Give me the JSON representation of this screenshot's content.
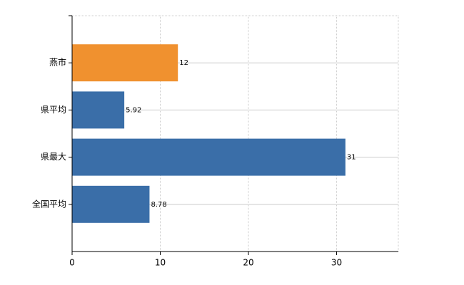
{
  "chart_data": {
    "type": "hbar",
    "categories": [
      "燕市",
      "県平均",
      "県最大",
      "全国平均"
    ],
    "values": [
      12,
      5.92,
      31,
      8.78
    ],
    "colors": [
      "#f0912f",
      "#3a6ea8",
      "#3a6ea8",
      "#3a6ea8"
    ],
    "xlim": [
      0,
      37
    ],
    "xticks": [
      0,
      10,
      20,
      30
    ],
    "grid": true
  }
}
